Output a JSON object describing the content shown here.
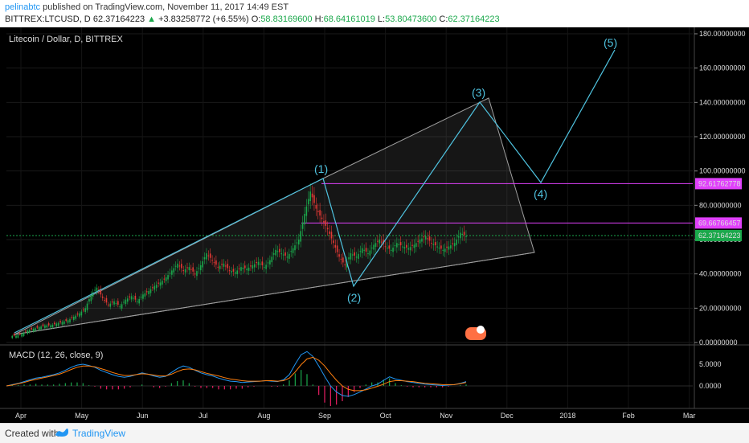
{
  "header": {
    "author": "pelinabtc",
    "published_text": "published on TradingView.com, November 11, 2017 14:49 EST",
    "symbol": "BITTREX:LTCUSD, D",
    "last": "62.37164223",
    "change_arrow": "▲",
    "change": "+3.83258772 (+6.55%)",
    "o_label": "O:",
    "o_value": "58.83169600",
    "h_label": "H:",
    "h_value": "68.64161019",
    "l_label": "L:",
    "l_value": "53.80473600",
    "c_label": "C:",
    "c_value": "62.37164223"
  },
  "footer": {
    "created_with": "Created with",
    "brand": "TradingView"
  },
  "chart_data": [
    {
      "type": "candlestick",
      "title": "Litecoin / Dollar, D, BITTREX",
      "ylim": [
        0,
        180
      ],
      "y_ticks": [
        "180.00000000",
        "160.00000000",
        "140.00000000",
        "120.00000000",
        "100.00000000",
        "80.00000000",
        "60.00000000",
        "40.00000000",
        "20.00000000",
        "0.00000000"
      ],
      "y_tick_values": [
        180,
        160,
        140,
        120,
        100,
        80,
        60,
        40,
        20,
        0
      ],
      "x_ticks": [
        "Apr",
        "May",
        "Jun",
        "Jul",
        "Aug",
        "Sep",
        "Oct",
        "Nov",
        "Dec",
        "2018",
        "Feb",
        "Mar"
      ],
      "price_marker_labels": [
        {
          "value": 92.61762778,
          "text": "92.61762778",
          "color": "#e040fb"
        },
        {
          "value": 69.66766457,
          "text": "69.66766457",
          "color": "#e040fb"
        },
        {
          "value": 62.37164223,
          "text": "62.37164223",
          "color": "#1aa84b"
        }
      ],
      "horizontal_lines": [
        {
          "value": 92.62,
          "from": "Sep",
          "color": "#e040fb"
        },
        {
          "value": 69.67,
          "from": "Aug",
          "color": "#e040fb"
        }
      ],
      "current_price_line": 62.37,
      "approx_closes": [
        4,
        5,
        7,
        8,
        9,
        10,
        10,
        11,
        12,
        13,
        15,
        17,
        20,
        28,
        32,
        26,
        22,
        24,
        21,
        25,
        27,
        24,
        28,
        30,
        33,
        35,
        38,
        42,
        46,
        42,
        44,
        40,
        45,
        52,
        48,
        44,
        46,
        42,
        41,
        44,
        43,
        45,
        47,
        44,
        48,
        54,
        52,
        50,
        55,
        60,
        75,
        88,
        78,
        72,
        66,
        58,
        50,
        45,
        52,
        50,
        55,
        52,
        57,
        60,
        56,
        54,
        58,
        56,
        55,
        57,
        60,
        62,
        58,
        56,
        54,
        56,
        58,
        64,
        62
      ],
      "wave_count": {
        "labels": [
          "(1)",
          "(2)",
          "(3)",
          "(4)",
          "(5)"
        ],
        "color": "#4fc3e0"
      },
      "triangle_color": "#9e9e9e"
    },
    {
      "type": "line",
      "title": "MACD (12, 26, close, 9)",
      "y_ticks": [
        "5.0000",
        "0.0000"
      ],
      "y_tick_values": [
        5,
        0
      ],
      "ylim": [
        -4,
        8
      ],
      "series": [
        {
          "color": "#2196f3",
          "values": [
            0,
            0.3,
            0.6,
            1,
            1.4,
            1.8,
            2,
            2.3,
            2.6,
            3,
            3.6,
            4.3,
            4.8,
            5,
            4.7,
            4.3,
            3.6,
            3.1,
            2.6,
            2.2,
            2,
            2.2,
            2.6,
            3,
            2.7,
            2.3,
            2,
            2.2,
            3.1,
            4,
            4.6,
            4.3,
            3.6,
            3,
            2.6,
            2.3,
            1.8,
            1.4,
            1.1,
            1,
            0.8,
            0.9,
            1,
            1.1,
            1.2,
            1.1,
            1,
            1.4,
            2.6,
            5,
            7.2,
            7.9,
            6.8,
            4.6,
            2.2,
            0,
            -1.4,
            -2.2,
            -2.4,
            -2,
            -1.4,
            -0.7,
            0,
            0.4,
            1.3,
            2.1,
            1.6,
            1.3,
            1,
            0.8,
            0.6,
            0.4,
            0.3,
            0.2,
            0.1,
            0.2,
            0.3,
            0.6,
            1
          ]
        },
        {
          "color": "#ff7f0e",
          "values": [
            0,
            0.2,
            0.5,
            0.8,
            1.2,
            1.5,
            1.8,
            2.1,
            2.4,
            2.7,
            3.2,
            3.8,
            4.3,
            4.6,
            4.6,
            4.4,
            4,
            3.6,
            3.1,
            2.7,
            2.4,
            2.4,
            2.6,
            2.8,
            2.7,
            2.5,
            2.3,
            2.3,
            2.7,
            3.3,
            3.8,
            3.9,
            3.7,
            3.3,
            2.9,
            2.6,
            2.3,
            1.9,
            1.6,
            1.4,
            1.2,
            1.1,
            1.1,
            1.1,
            1.2,
            1.2,
            1.1,
            1.2,
            1.8,
            3.2,
            4.9,
            6.2,
            6.6,
            5.9,
            4.6,
            2.9,
            1.3,
            0,
            -0.8,
            -1.1,
            -1.1,
            -0.9,
            -0.5,
            -0.1,
            0.4,
            1,
            1.2,
            1.2,
            1.1,
            1,
            0.8,
            0.6,
            0.5,
            0.4,
            0.3,
            0.3,
            0.3,
            0.5,
            0.8
          ]
        }
      ]
    }
  ]
}
